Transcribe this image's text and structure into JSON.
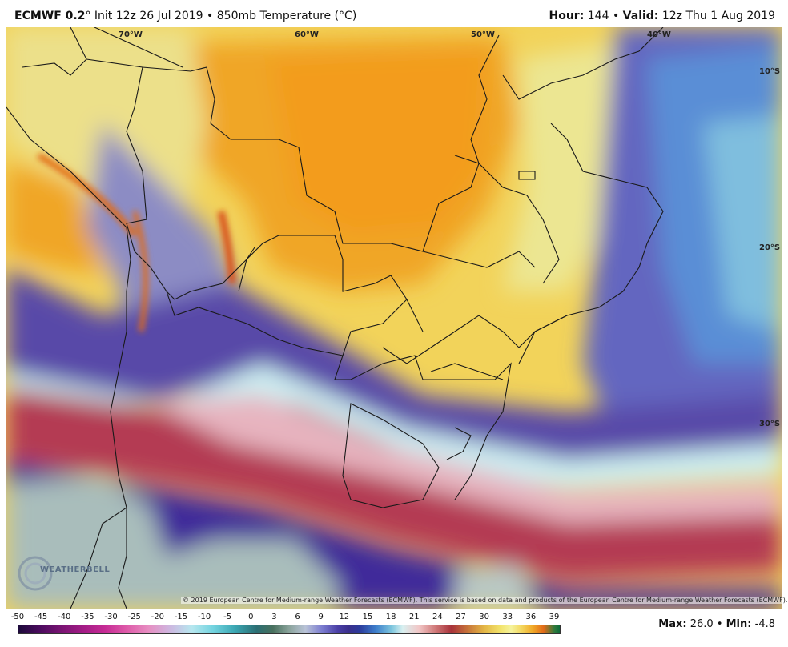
{
  "header": {
    "model": "ECMWF 0.2",
    "degree": "°",
    "init_text": "Init 12z 26 Jul 2019",
    "bullet": "•",
    "product": "850mb Temperature (°C)",
    "hour_label": "Hour:",
    "hour_value": "144",
    "valid_label": "Valid:",
    "valid_value": "12z Thu 1 Aug 2019"
  },
  "map": {
    "lon_labels": [
      "70°W",
      "60°W",
      "50°W",
      "40°W"
    ],
    "lat_labels": [
      "10°S",
      "20°S",
      "30°S"
    ],
    "copyright": "© 2019 European Centre for Medium-range Weather Forecasts (ECMWF). This service is based on data and products of the European Centre for Medium-range Weather Forecasts (ECMWF)."
  },
  "logo": {
    "text": "WEATHERBELL"
  },
  "legend": {
    "ticks": [
      "-50",
      "-45",
      "-40",
      "-35",
      "-30",
      "-25",
      "-20",
      "-15",
      "-10",
      "-5",
      "0",
      "3",
      "6",
      "9",
      "12",
      "15",
      "18",
      "21",
      "24",
      "27",
      "30",
      "33",
      "36",
      "39"
    ],
    "colors": {
      "cold": "#4a3fa6",
      "freezing": "#d9f0f0",
      "warm": "#a8323a",
      "hot": "#f0a928"
    }
  },
  "stats": {
    "max_label": "Max:",
    "max_value": "26.0",
    "min_label": "Min:",
    "min_value": "-4.8"
  }
}
